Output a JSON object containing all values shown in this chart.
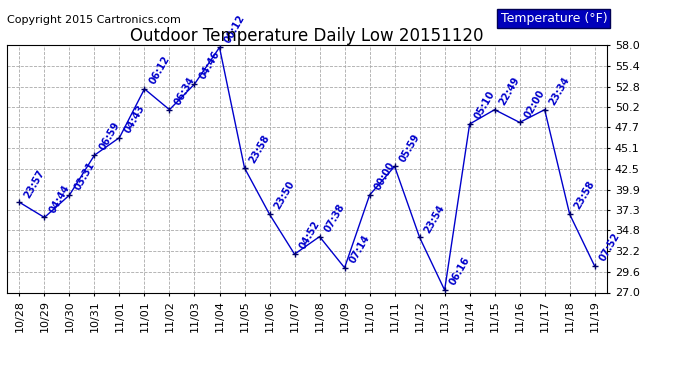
{
  "title": "Outdoor Temperature Daily Low 20151120",
  "copyright": "Copyright 2015 Cartronics.com",
  "legend_label": "Temperature (°F)",
  "x_labels": [
    "10/28",
    "10/29",
    "10/30",
    "10/31",
    "11/01",
    "11/01",
    "11/02",
    "11/03",
    "11/04",
    "11/05",
    "11/06",
    "11/07",
    "11/08",
    "11/09",
    "11/10",
    "11/11",
    "11/12",
    "11/13",
    "11/14",
    "11/15",
    "11/16",
    "11/17",
    "11/18",
    "11/19"
  ],
  "times": [
    "23:57",
    "04:44",
    "03:31",
    "06:59",
    "04:43",
    "06:12",
    "06:34",
    "04:46",
    "00:12",
    "23:58",
    "23:50",
    "04:52",
    "07:38",
    "07:14",
    "00:00",
    "05:59",
    "23:54",
    "06:16",
    "05:10",
    "22:49",
    "02:00",
    "23:34",
    "23:58",
    "07:52"
  ],
  "temps": [
    38.3,
    36.4,
    39.2,
    44.2,
    46.4,
    52.5,
    49.9,
    53.1,
    57.7,
    42.6,
    36.8,
    31.8,
    34.0,
    30.1,
    39.2,
    42.8,
    33.9,
    27.3,
    48.1,
    49.9,
    48.3,
    49.9,
    36.8,
    30.3
  ],
  "ylim": [
    27.0,
    58.0
  ],
  "yticks": [
    27.0,
    29.6,
    32.2,
    34.8,
    37.3,
    39.9,
    42.5,
    45.1,
    47.7,
    50.2,
    52.8,
    55.4,
    58.0
  ],
  "line_color": "#0000cc",
  "marker_color": "#000066",
  "bg_color": "#ffffff",
  "plot_bg_color": "#ffffff",
  "grid_color": "#aaaaaa",
  "title_color": "#000000",
  "label_color": "#0000cc",
  "copyright_color": "#000000",
  "legend_bg": "#0000bb",
  "legend_fg": "#ffffff",
  "title_fontsize": 12,
  "copyright_fontsize": 8,
  "label_fontsize": 7,
  "tick_fontsize": 8,
  "legend_fontsize": 9
}
